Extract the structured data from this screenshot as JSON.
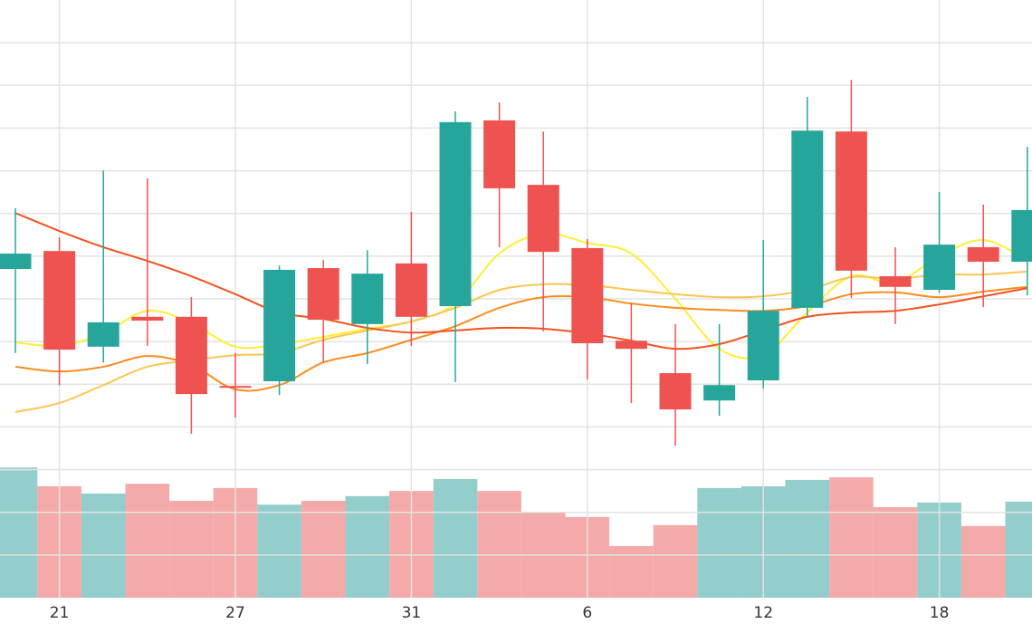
{
  "chart_data": {
    "type": "candlestick",
    "categories": [
      null,
      "21",
      null,
      null,
      null,
      "27",
      null,
      null,
      null,
      "31",
      null,
      null,
      null,
      "6",
      null,
      null,
      null,
      "12",
      null,
      null,
      null,
      "18",
      null,
      null
    ],
    "open": [
      77.0,
      81.2,
      58.8,
      65.8,
      65.8,
      49.6,
      50.7,
      77.2,
      64.1,
      78.3,
      68.3,
      111.8,
      96.7,
      81.9,
      60.2,
      52.6,
      46.2,
      50.9,
      67.9,
      109.2,
      75.3,
      72.1,
      82.1,
      78.7
    ],
    "high": [
      91.2,
      84.4,
      100.1,
      98.2,
      70.4,
      57.3,
      77.8,
      79.1,
      81.4,
      90.4,
      113.9,
      116.0,
      109.2,
      84.0,
      69.1,
      64.1,
      64.1,
      83.8,
      117.3,
      121.3,
      82.1,
      95.0,
      92.1,
      105.6
    ],
    "low": [
      57.3,
      49.8,
      55.1,
      59.0,
      38.4,
      42.2,
      47.5,
      55.1,
      54.7,
      59.0,
      50.5,
      82.1,
      62.4,
      51.1,
      45.6,
      35.6,
      42.6,
      49.0,
      65.8,
      70.2,
      64.1,
      71.5,
      68.1,
      70.8
    ],
    "close": [
      80.6,
      58.1,
      64.5,
      64.9,
      47.7,
      49.2,
      76.8,
      65.1,
      75.9,
      65.8,
      111.4,
      95.9,
      81.0,
      59.6,
      58.3,
      44.1,
      49.8,
      67.2,
      109.4,
      76.6,
      72.8,
      82.7,
      78.7,
      90.8
    ],
    "volume": [
      30.5,
      26.1,
      24.4,
      26.7,
      22.7,
      25.7,
      21.8,
      22.7,
      23.8,
      25.0,
      27.8,
      25.0,
      19.9,
      18.9,
      12.1,
      17.0,
      25.7,
      26.1,
      27.6,
      28.2,
      21.2,
      22.3,
      16.8,
      22.5
    ],
    "up_color": "#26a69a",
    "down_color": "#ef5350",
    "volume_up_color": "#93cdcc",
    "volume_down_color": "#f4aaa8",
    "ma_series": [
      {
        "color": "#ffee33",
        "values": [
          59.8,
          59.0,
          61.9,
          67.2,
          64.3,
          58.8,
          59.4,
          61.1,
          63.0,
          64.7,
          68.9,
          80.6,
          85.3,
          83.1,
          80.6,
          70.0,
          58.3,
          56.8,
          66.8,
          75.3,
          73.8,
          80.0,
          83.8,
          79.1
        ]
      },
      {
        "color": "#f9c74f",
        "values": [
          43.5,
          45.6,
          49.8,
          54.1,
          55.6,
          56.8,
          57.3,
          60.4,
          62.6,
          64.7,
          67.9,
          72.1,
          73.4,
          73.2,
          72.1,
          71.1,
          70.4,
          70.6,
          72.1,
          75.1,
          74.7,
          75.7,
          75.7,
          76.4
        ]
      },
      {
        "color": "#fb8c1e",
        "values": [
          54.1,
          53.0,
          54.1,
          56.6,
          54.5,
          48.8,
          49.8,
          55.1,
          57.3,
          60.4,
          63.6,
          67.9,
          70.4,
          70.4,
          68.9,
          67.9,
          67.4,
          67.2,
          68.3,
          71.1,
          71.5,
          70.4,
          71.7,
          72.8
        ]
      },
      {
        "color": "#f4511e",
        "values": [
          90.1,
          85.9,
          82.1,
          78.9,
          75.3,
          71.1,
          66.8,
          65.3,
          63.2,
          62.1,
          62.6,
          63.2,
          63.0,
          61.9,
          60.2,
          58.3,
          59.4,
          62.6,
          65.8,
          66.8,
          67.2,
          68.7,
          70.6,
          72.5
        ]
      }
    ],
    "ylim": [
      0,
      140
    ],
    "yticks": [
      10,
      20,
      30,
      40,
      50,
      60,
      70,
      80,
      90,
      100,
      110,
      120,
      130
    ],
    "y2lim": [
      0,
      140
    ],
    "grid": true
  }
}
